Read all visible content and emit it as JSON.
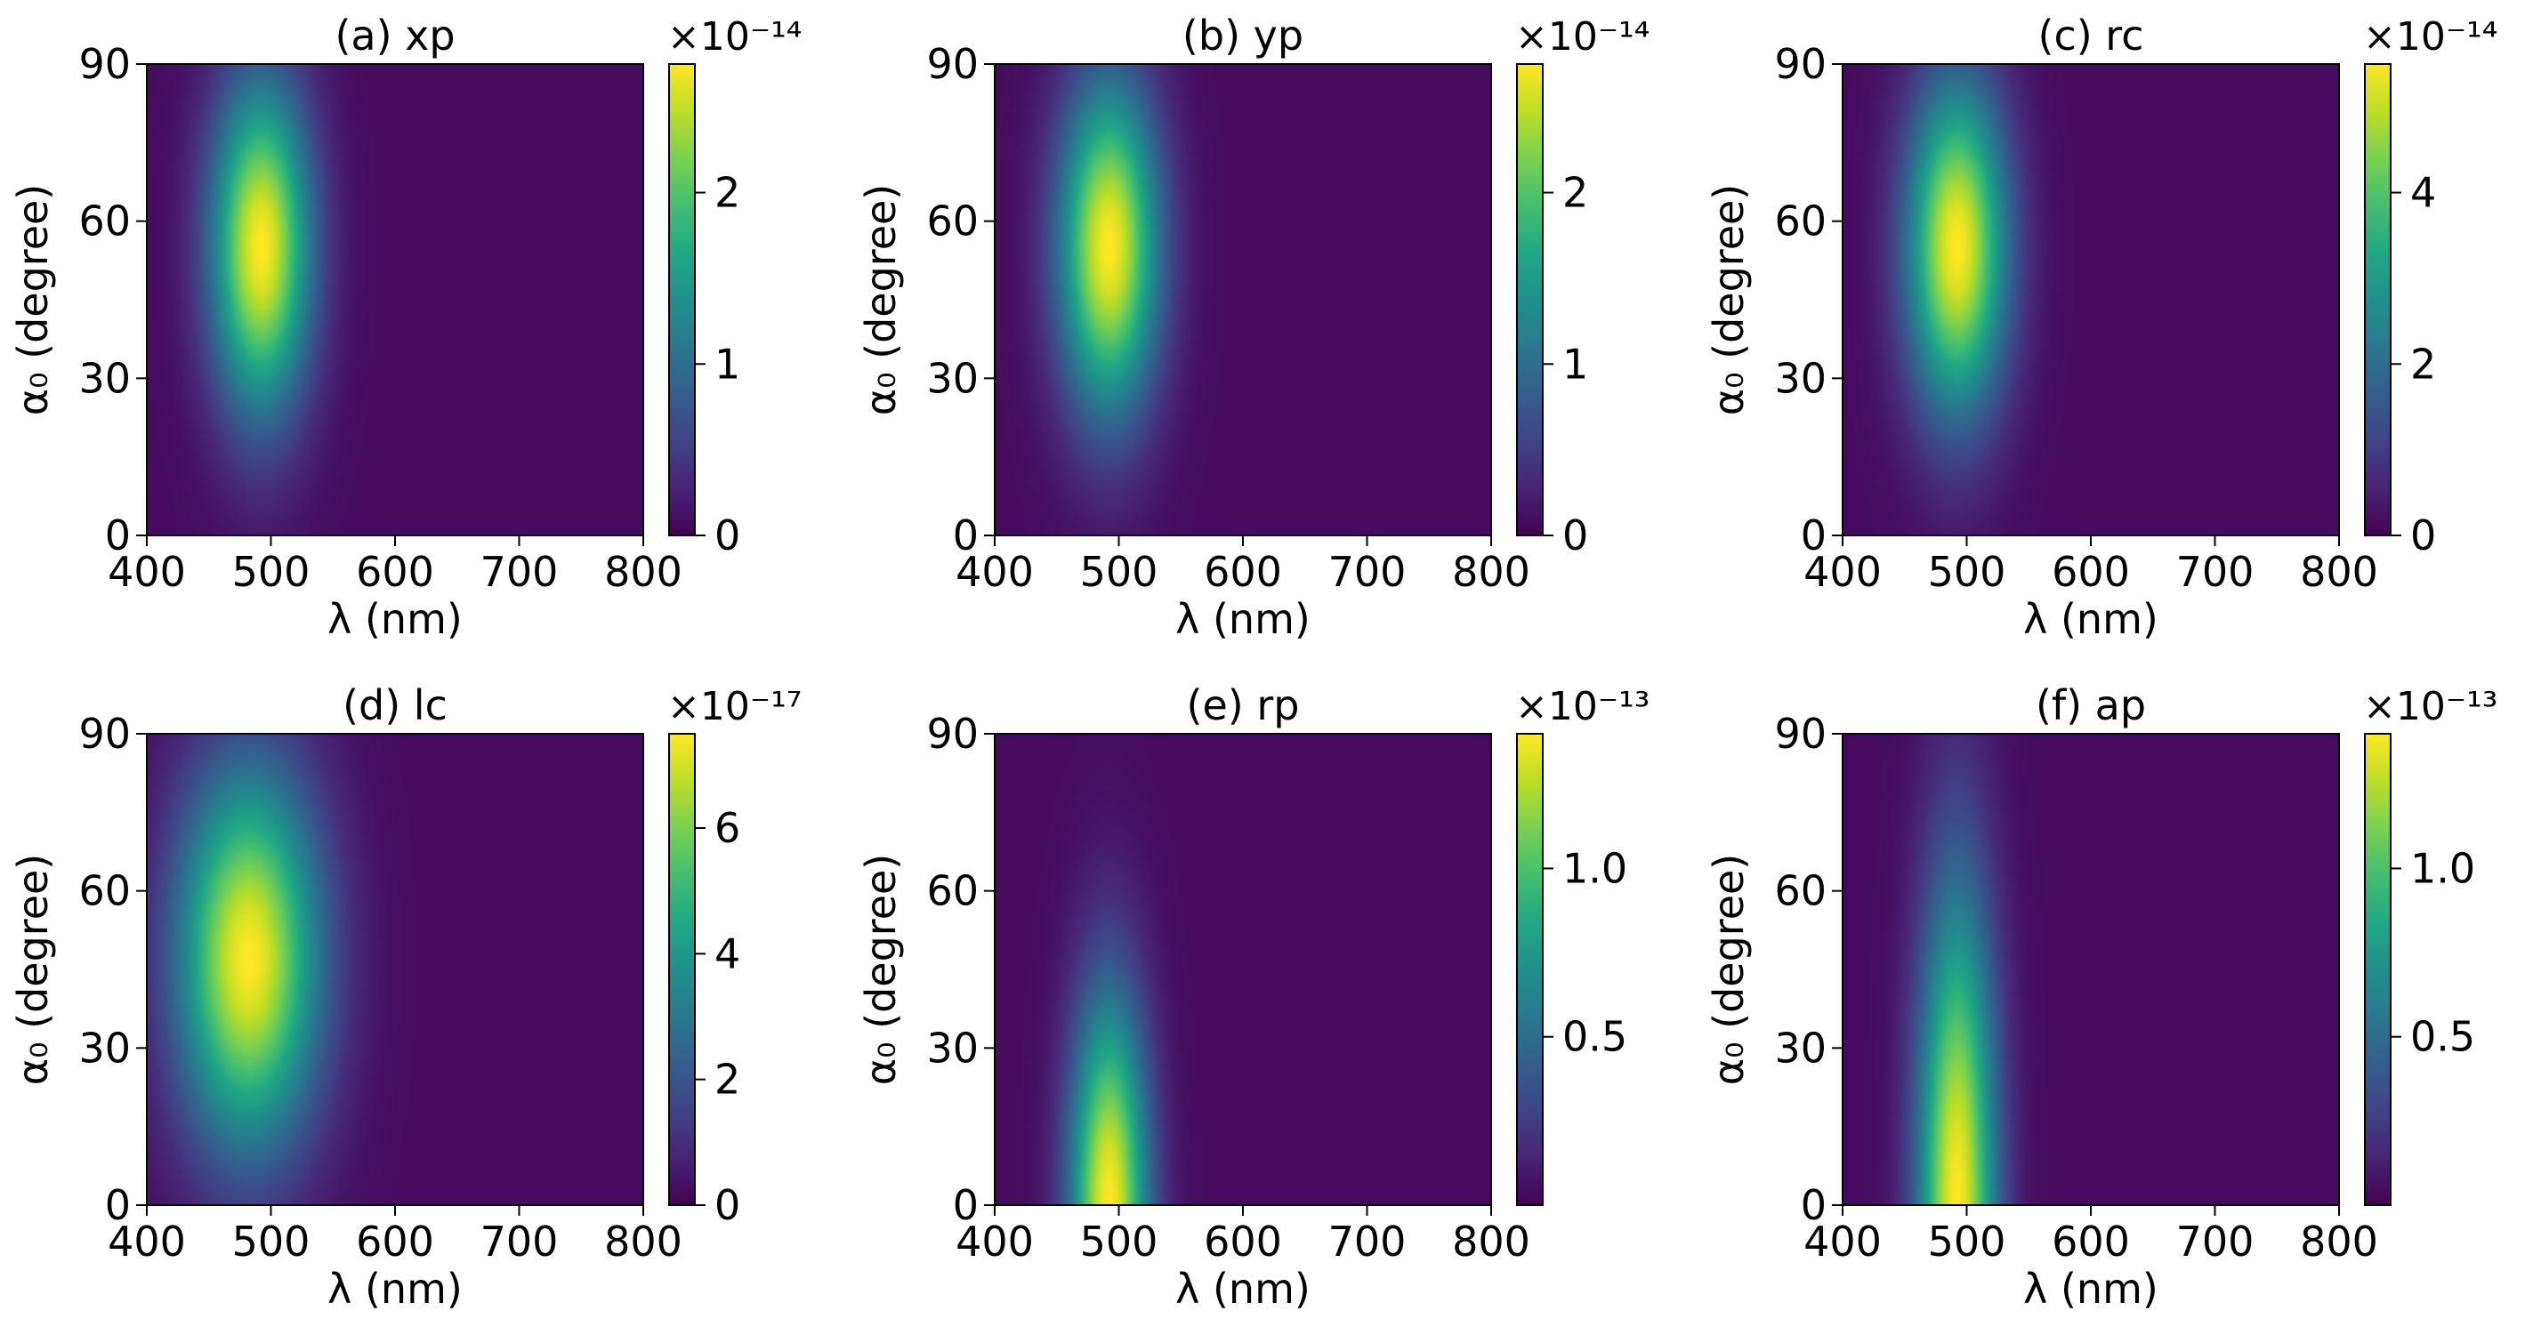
{
  "colormap": "viridis",
  "colors": {
    "background": "#ffffff",
    "axis": "#000000",
    "viridis_low": "#440154",
    "viridis_high": "#fde725"
  },
  "chart_data": [
    {
      "type": "heatmap",
      "title": "(a) xp",
      "xlabel": "λ (nm)",
      "ylabel": "α₀ (degree)",
      "xlim": [
        400,
        800
      ],
      "ylim": [
        0,
        90
      ],
      "xticks": [
        "400",
        "500",
        "600",
        "700",
        "800"
      ],
      "yticks": [
        "0",
        "30",
        "60",
        "90"
      ],
      "colorbar": {
        "multiplier": "×10⁻¹⁴",
        "ticks": [
          "0",
          "1",
          "2"
        ],
        "tick_values": [
          0,
          1,
          2
        ],
        "vmin": 0,
        "vmax": 2.75
      },
      "peak": {
        "lambda_nm": 492,
        "alpha_deg": 55,
        "value": 2.75
      },
      "spread": {
        "lambda_nm": 28,
        "alpha_deg": 22
      }
    },
    {
      "type": "heatmap",
      "title": "(b) yp",
      "xlabel": "λ (nm)",
      "ylabel": "α₀ (degree)",
      "xlim": [
        400,
        800
      ],
      "ylim": [
        0,
        90
      ],
      "xticks": [
        "400",
        "500",
        "600",
        "700",
        "800"
      ],
      "yticks": [
        "0",
        "30",
        "60",
        "90"
      ],
      "colorbar": {
        "multiplier": "×10⁻¹⁴",
        "ticks": [
          "0",
          "1",
          "2"
        ],
        "tick_values": [
          0,
          1,
          2
        ],
        "vmin": 0,
        "vmax": 2.75
      },
      "peak": {
        "lambda_nm": 492,
        "alpha_deg": 55,
        "value": 2.75
      },
      "spread": {
        "lambda_nm": 28,
        "alpha_deg": 22
      }
    },
    {
      "type": "heatmap",
      "title": "(c) rc",
      "xlabel": "λ (nm)",
      "ylabel": "α₀ (degree)",
      "xlim": [
        400,
        800
      ],
      "ylim": [
        0,
        90
      ],
      "xticks": [
        "400",
        "500",
        "600",
        "700",
        "800"
      ],
      "yticks": [
        "0",
        "30",
        "60",
        "90"
      ],
      "colorbar": {
        "multiplier": "×10⁻¹⁴",
        "ticks": [
          "0",
          "2",
          "4"
        ],
        "tick_values": [
          0,
          2,
          4
        ],
        "vmin": 0,
        "vmax": 5.5
      },
      "peak": {
        "lambda_nm": 492,
        "alpha_deg": 55,
        "value": 5.5
      },
      "spread": {
        "lambda_nm": 28,
        "alpha_deg": 22
      }
    },
    {
      "type": "heatmap",
      "title": "(d) lc",
      "xlabel": "λ (nm)",
      "ylabel": "α₀ (degree)",
      "xlim": [
        400,
        800
      ],
      "ylim": [
        0,
        90
      ],
      "xticks": [
        "400",
        "500",
        "600",
        "700",
        "800"
      ],
      "yticks": [
        "0",
        "30",
        "60",
        "90"
      ],
      "colorbar": {
        "multiplier": "×10⁻¹⁷",
        "ticks": [
          "0",
          "2",
          "4",
          "6"
        ],
        "tick_values": [
          0,
          2,
          4,
          6
        ],
        "vmin": 0,
        "vmax": 7.5
      },
      "peak": {
        "lambda_nm": 482,
        "alpha_deg": 47,
        "value": 7.5
      },
      "spread": {
        "lambda_nm": 40,
        "alpha_deg": 25
      }
    },
    {
      "type": "heatmap",
      "title": "(e) rp",
      "xlabel": "λ (nm)",
      "ylabel": "α₀ (degree)",
      "xlim": [
        400,
        800
      ],
      "ylim": [
        0,
        90
      ],
      "xticks": [
        "400",
        "500",
        "600",
        "700",
        "800"
      ],
      "yticks": [
        "0",
        "30",
        "60",
        "90"
      ],
      "colorbar": {
        "multiplier": "×10⁻¹³",
        "ticks": [
          "0.5",
          "1.0"
        ],
        "tick_values": [
          0.5,
          1.0
        ],
        "vmin": 0,
        "vmax": 1.4
      },
      "peak": {
        "lambda_nm": 492,
        "alpha_deg": 0,
        "value": 1.4
      },
      "spread": {
        "lambda_nm": 22,
        "alpha_deg": 28
      }
    },
    {
      "type": "heatmap",
      "title": "(f) ap",
      "xlabel": "λ (nm)",
      "ylabel": "α₀ (degree)",
      "xlim": [
        400,
        800
      ],
      "ylim": [
        0,
        90
      ],
      "xticks": [
        "400",
        "500",
        "600",
        "700",
        "800"
      ],
      "yticks": [
        "0",
        "30",
        "60",
        "90"
      ],
      "colorbar": {
        "multiplier": "×10⁻¹³",
        "ticks": [
          "0.5",
          "1.0"
        ],
        "tick_values": [
          0.5,
          1.0
        ],
        "vmin": 0,
        "vmax": 1.4
      },
      "peak": {
        "lambda_nm": 492,
        "alpha_deg": 0,
        "value": 1.4
      },
      "spread": {
        "lambda_nm": 22,
        "alpha_deg": 42
      }
    }
  ]
}
